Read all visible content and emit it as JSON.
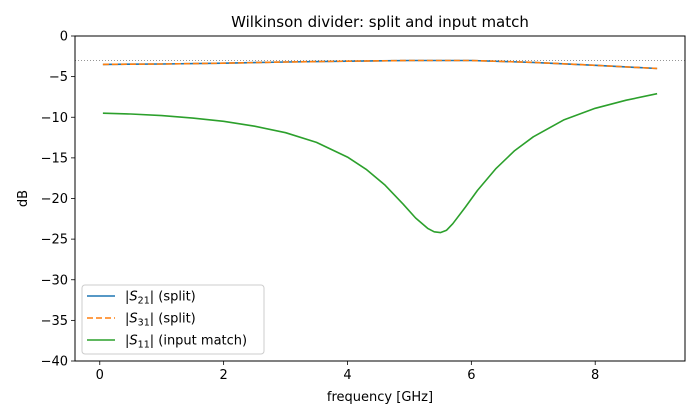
{
  "chart_data": {
    "type": "line",
    "title": "Wilkinson divider: split and input match",
    "xlabel": "frequency [GHz]",
    "ylabel": "dB",
    "xlim": [
      -0.4,
      9.45
    ],
    "ylim": [
      -40,
      0
    ],
    "xticks": [
      0,
      2,
      4,
      6,
      8
    ],
    "yticks": [
      0,
      -5,
      -10,
      -15,
      -20,
      -25,
      -30,
      -35,
      -40
    ],
    "reference_line": {
      "y": -3.01,
      "style": "dotted",
      "color": "#888888"
    },
    "legend_position": "lower-left",
    "grid": false,
    "series": [
      {
        "name": "|S21| (split)",
        "sub": "21",
        "suffix": "(split)",
        "color": "#1f77b4",
        "dash": "solid",
        "x": [
          0.05,
          1.0,
          2.0,
          3.0,
          4.0,
          5.0,
          5.5,
          6.0,
          7.0,
          8.0,
          9.0
        ],
        "y": [
          -3.5,
          -3.45,
          -3.35,
          -3.2,
          -3.1,
          -3.02,
          -3.01,
          -3.02,
          -3.25,
          -3.6,
          -4.0
        ]
      },
      {
        "name": "|S31| (split)",
        "sub": "31",
        "suffix": "(split)",
        "color": "#ff7f0e",
        "dash": "dashed",
        "x": [
          0.05,
          1.0,
          2.0,
          3.0,
          4.0,
          5.0,
          5.5,
          6.0,
          7.0,
          8.0,
          9.0
        ],
        "y": [
          -3.5,
          -3.45,
          -3.35,
          -3.2,
          -3.1,
          -3.02,
          -3.01,
          -3.02,
          -3.25,
          -3.6,
          -4.0
        ]
      },
      {
        "name": "|S11| (input match)",
        "sub": "11",
        "suffix": "(input match)",
        "color": "#2ca02c",
        "dash": "solid",
        "x": [
          0.05,
          0.5,
          1.0,
          1.5,
          2.0,
          2.5,
          3.0,
          3.5,
          4.0,
          4.3,
          4.6,
          4.9,
          5.1,
          5.3,
          5.4,
          5.5,
          5.6,
          5.7,
          5.9,
          6.1,
          6.4,
          6.7,
          7.0,
          7.5,
          8.0,
          8.5,
          9.0
        ],
        "y": [
          -9.5,
          -9.6,
          -9.8,
          -10.1,
          -10.5,
          -11.1,
          -11.9,
          -13.1,
          -14.9,
          -16.4,
          -18.3,
          -20.7,
          -22.4,
          -23.7,
          -24.1,
          -24.2,
          -23.9,
          -23.1,
          -21.1,
          -19.0,
          -16.3,
          -14.1,
          -12.4,
          -10.3,
          -8.9,
          -7.9,
          -7.1
        ]
      }
    ]
  }
}
